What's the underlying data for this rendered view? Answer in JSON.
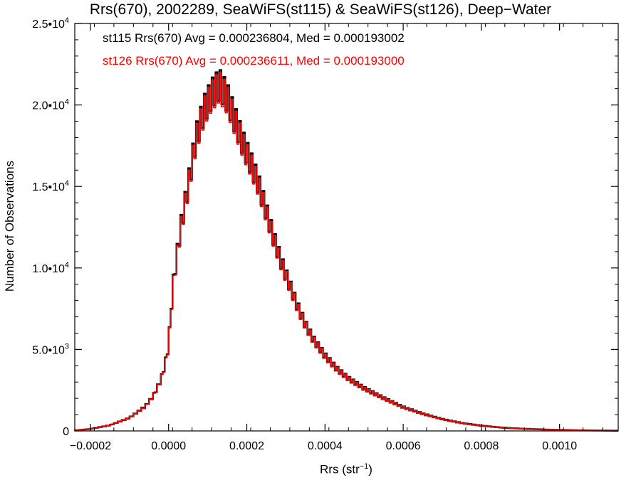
{
  "chart_data": {
    "type": "line",
    "title": "Rrs(670), 2002289, SeaWiFS(st115) & SeaWiFS(st126), Deep−Water",
    "xlabel_main": "Rrs (str",
    "xlabel_sup": "−1",
    "xlabel_close": ")",
    "ylabel": "Number of Observations",
    "xlim": [
      -0.00024,
      0.00115
    ],
    "ylim": [
      0,
      25000
    ],
    "x_ticks": [
      -0.0002,
      0.0,
      0.0002,
      0.0004,
      0.0006,
      0.0008,
      0.001
    ],
    "x_tick_labels": [
      "−0.0002",
      "0.0000",
      "0.0002",
      "0.0004",
      "0.0006",
      "0.0008",
      "0.0010"
    ],
    "y_ticks": [
      0,
      5000,
      10000,
      15000,
      20000,
      25000
    ],
    "y_tick_labels": [
      {
        "mant": "0",
        "exp": ""
      },
      {
        "mant": "5.0•10",
        "exp": "3"
      },
      {
        "mant": "1.0•10",
        "exp": "4"
      },
      {
        "mant": "1.5•10",
        "exp": "4"
      },
      {
        "mant": "2.0•10",
        "exp": "4"
      },
      {
        "mant": "2.5•10",
        "exp": "4"
      }
    ],
    "annotations": [
      "st115 Rrs(670) Avg = 0.000236804, Med = 0.000193002",
      "st126 Rrs(670) Avg = 0.000236611, Med = 0.000193000"
    ],
    "bin_width": 5e-06,
    "x_start": -0.00024,
    "shape_points": [
      [
        -0.00024,
        30
      ],
      [
        -0.0002,
        120
      ],
      [
        -0.00015,
        350
      ],
      [
        -0.0001,
        800
      ],
      [
        -6e-05,
        1500
      ],
      [
        -4e-05,
        2100
      ],
      [
        -2e-05,
        3100
      ],
      [
        -1e-05,
        4000
      ],
      [
        0.0,
        5200
      ],
      [
        1e-05,
        8700
      ],
      [
        3e-05,
        12300
      ],
      [
        5e-05,
        15000
      ],
      [
        7e-05,
        17900
      ],
      [
        9e-05,
        19600
      ],
      [
        0.00011,
        20600
      ],
      [
        0.00013,
        21200
      ],
      [
        0.00015,
        20400
      ],
      [
        0.00017,
        19000
      ],
      [
        0.00019,
        17600
      ],
      [
        0.00021,
        16400
      ],
      [
        0.00023,
        15100
      ],
      [
        0.00025,
        13400
      ],
      [
        0.00027,
        11700
      ],
      [
        0.00029,
        10200
      ],
      [
        0.00031,
        8900
      ],
      [
        0.00033,
        7600
      ],
      [
        0.00035,
        6500
      ],
      [
        0.00037,
        5600
      ],
      [
        0.0004,
        4600
      ],
      [
        0.00043,
        3800
      ],
      [
        0.00046,
        3200
      ],
      [
        0.0005,
        2600
      ],
      [
        0.00055,
        2000
      ],
      [
        0.0006,
        1450
      ],
      [
        0.00065,
        1050
      ],
      [
        0.0007,
        720
      ],
      [
        0.00075,
        480
      ],
      [
        0.0008,
        320
      ],
      [
        0.00085,
        210
      ],
      [
        0.0009,
        140
      ],
      [
        0.00095,
        95
      ],
      [
        0.001,
        65
      ],
      [
        0.00105,
        40
      ],
      [
        0.0011,
        25
      ],
      [
        0.00115,
        15
      ]
    ],
    "series": [
      {
        "name": "st115",
        "color": "#000000"
      },
      {
        "name": "st126",
        "color": "#ff0000"
      }
    ],
    "grid": false
  }
}
